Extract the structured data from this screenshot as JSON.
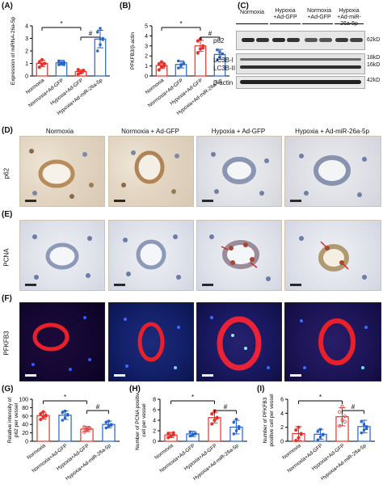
{
  "panels": {
    "A": "(A)",
    "B": "(B)",
    "C": "(C)",
    "D": "(D)",
    "E": "(E)",
    "F": "(F)",
    "G": "(G)",
    "H": "(H)",
    "I": "(I)"
  },
  "groups": [
    "Normoxia",
    "Normoxia+Ad-GFP",
    "Hypoxia+Ad-GFP",
    "Hypoxia+Ad-miR-26a-5p"
  ],
  "colors": {
    "c1": "#e8312a",
    "c2": "#2563c9",
    "c3": "#e8312a",
    "c4": "#2563c9"
  },
  "chart_data": [
    {
      "id": "A",
      "type": "bar",
      "ylabel": "Expression of miRNA-26a-5p",
      "ylim": [
        0,
        4
      ],
      "yticks": [
        "0",
        "1",
        "2",
        "3",
        "4"
      ],
      "categories": [
        "Normoxia",
        "Normoxia+Ad-GFP",
        "Hypoxia+Ad-GFP",
        "Hypoxia+Ad-miR-26a-5p"
      ],
      "values": [
        1.0,
        1.05,
        0.35,
        2.95
      ],
      "errors": [
        0.25,
        0.2,
        0.15,
        0.7
      ],
      "points": [
        [
          0.7,
          0.9,
          1.0,
          1.1,
          1.3,
          1.0
        ],
        [
          0.9,
          1.0,
          1.1,
          1.2,
          1.05,
          0.9
        ],
        [
          0.15,
          0.3,
          0.4,
          0.5,
          0.25,
          0.45
        ],
        [
          2.0,
          2.5,
          3.0,
          3.5,
          3.8,
          2.9
        ]
      ],
      "sig": [
        {
          "from": 0,
          "to": 2,
          "text": "*",
          "level": 1
        },
        {
          "from": 2,
          "to": 3,
          "text": "#",
          "level": 0
        }
      ]
    },
    {
      "id": "B",
      "type": "bar",
      "ylabel": "PFKFB3/β-actin",
      "ylim": [
        0,
        5
      ],
      "yticks": [
        "0",
        "1",
        "2",
        "3",
        "4",
        "5"
      ],
      "categories": [
        "Normoxia",
        "Normoxia+Ad-GFP",
        "Hypoxia+Ad-GFP",
        "Hypoxia+Ad-miR-26a-5p"
      ],
      "values": [
        1.05,
        1.15,
        3.0,
        2.15
      ],
      "errors": [
        0.3,
        0.35,
        0.55,
        0.5
      ],
      "points": [
        [
          0.6,
          0.9,
          1.0,
          1.2,
          1.4,
          1.2
        ],
        [
          0.8,
          1.0,
          1.3,
          1.5,
          1.1,
          1.2
        ],
        [
          2.3,
          2.7,
          3.0,
          3.5,
          3.7,
          2.8
        ],
        [
          1.6,
          1.9,
          2.2,
          2.6,
          2.4,
          2.2
        ]
      ],
      "sig": [
        {
          "from": 0,
          "to": 2,
          "text": "*",
          "level": 1
        },
        {
          "from": 2,
          "to": 3,
          "text": "#",
          "level": 0
        }
      ]
    },
    {
      "id": "G",
      "type": "bar",
      "ylabel": "Relative intensity of p62 per vessel",
      "ylim": [
        0,
        100
      ],
      "yticks": [
        "0",
        "20",
        "40",
        "60",
        "80",
        "100"
      ],
      "categories": [
        "Normoxia",
        "Normoxia+Ad-GFP",
        "Hypoxia+Ad-GFP",
        "Hypoxia+Ad-miR-26a-5p"
      ],
      "values": [
        61,
        62,
        29,
        40
      ],
      "errors": [
        8,
        10,
        6,
        8
      ],
      "points": [
        [
          52,
          58,
          62,
          65,
          70,
          60
        ],
        [
          50,
          56,
          62,
          68,
          72,
          64
        ],
        [
          22,
          26,
          30,
          34,
          28,
          32
        ],
        [
          32,
          36,
          40,
          45,
          48,
          38
        ]
      ],
      "sig": [
        {
          "from": 0,
          "to": 2,
          "text": "*",
          "level": 1
        },
        {
          "from": 2,
          "to": 3,
          "text": "#",
          "level": 0
        }
      ]
    },
    {
      "id": "H",
      "type": "bar",
      "ylabel": "Number of PCNA positive cell per vessel",
      "ylim": [
        0,
        8
      ],
      "yticks": [
        "0",
        "2",
        "4",
        "6",
        "8"
      ],
      "categories": [
        "Normoxia",
        "Normoxia+Ad-GFP",
        "Hypoxia+Ad-GFP",
        "Hypoxia+Ad-miR-26a-5p"
      ],
      "values": [
        1.2,
        1.4,
        4.5,
        2.7
      ],
      "errors": [
        0.5,
        0.5,
        1.0,
        1.3
      ],
      "points": [
        [
          0.7,
          1.0,
          1.2,
          1.5,
          1.0,
          1.6
        ],
        [
          1.0,
          1.2,
          1.5,
          1.8,
          1.3,
          1.4
        ],
        [
          3.3,
          4.0,
          4.5,
          5.2,
          5.8,
          4.4
        ],
        [
          1.4,
          2.0,
          2.8,
          3.6,
          4.2,
          2.4
        ]
      ],
      "sig": [
        {
          "from": 0,
          "to": 2,
          "text": "*",
          "level": 1
        },
        {
          "from": 2,
          "to": 3,
          "text": "#",
          "level": 0
        }
      ]
    },
    {
      "id": "I",
      "type": "bar",
      "ylabel": "Number of PFKFB3 positive cell per vessel",
      "ylim": [
        0,
        6
      ],
      "yticks": [
        "0",
        "2",
        "4",
        "6"
      ],
      "categories": [
        "Normoxia",
        "Normoxia+Ad-GFP",
        "Hypoxia+Ad-GFP",
        "Hypoxia+Ad-miR-26a-5p"
      ],
      "values": [
        1.1,
        1.0,
        3.5,
        2.1
      ],
      "errors": [
        1.0,
        0.7,
        1.3,
        0.9
      ],
      "points": [
        [
          0.1,
          0.5,
          1.0,
          1.6,
          2.0,
          1.1
        ],
        [
          0.2,
          0.6,
          1.0,
          1.4,
          1.7,
          0.9
        ],
        [
          2.2,
          3.0,
          3.6,
          4.2,
          5.0,
          2.8
        ],
        [
          1.2,
          1.6,
          2.1,
          2.8,
          2.4,
          1.8
        ]
      ],
      "sig": [
        {
          "from": 0,
          "to": 2,
          "text": "*",
          "level": 1
        },
        {
          "from": 2,
          "to": 3,
          "text": "#",
          "level": 0
        }
      ]
    }
  ],
  "blot": {
    "columns": [
      "Normoxia",
      "Hypoxia +Ad-GFP",
      "Normoxia +Ad-GFP",
      "Hypoxia +Ad-miR-26a-5p"
    ],
    "rows": [
      "p62",
      "LC3B-I",
      "LC3B-II",
      "β-actin"
    ],
    "sizes": [
      "62kD",
      "18kD",
      "16kD",
      "42kD"
    ]
  },
  "micro": {
    "col_titles": [
      "Normoxia",
      "Normoxia + Ad-GFP",
      "Hypoxia + Ad-GFP",
      "Hypoxia + Ad-miR-26a-5p"
    ],
    "row_labels": {
      "D": "p62",
      "E": "PCNA",
      "F": "PFKFB3"
    }
  }
}
